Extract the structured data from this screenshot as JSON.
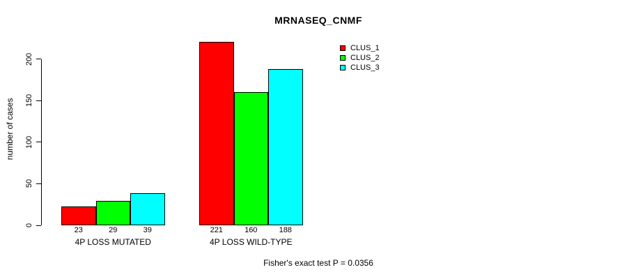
{
  "chart_data": {
    "type": "bar",
    "title": "MRNASEQ_CNMF",
    "xlabel": "",
    "ylabel": "number of cases",
    "categories": [
      "4P LOSS MUTATED",
      "4P LOSS WILD-TYPE"
    ],
    "series": [
      {
        "name": "CLUS_1",
        "color": "#FF0000",
        "values": [
          23,
          221
        ]
      },
      {
        "name": "CLUS_2",
        "color": "#00FF00",
        "values": [
          29,
          160
        ]
      },
      {
        "name": "CLUS_3",
        "color": "#00FFFF",
        "values": [
          39,
          188
        ]
      }
    ],
    "y_ticks": [
      0,
      50,
      100,
      150,
      200
    ],
    "ylim": [
      0,
      225
    ],
    "grid": false,
    "bar_value_labels_shown": true,
    "legend_position": "top-right",
    "annotation": "Fisher's exact test P = 0.0356"
  }
}
